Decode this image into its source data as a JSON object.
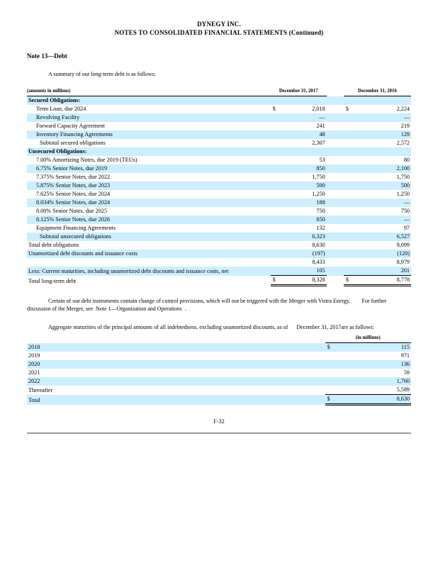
{
  "colors": {
    "row_highlight": "#CCEEFF",
    "rule": "#000000",
    "page_divider": "#9a9a9a"
  },
  "header": {
    "company": "DYNEGY INC.",
    "statement": "NOTES TO CONSOLIDATED FINANCIAL STATEMENTS (Continued)"
  },
  "note": {
    "heading": "Note 13—Debt",
    "intro": "A summary of our long-term debt is as follows:"
  },
  "debt_table": {
    "caption": "(amounts in millions)",
    "col_2017": "December 31, 2017",
    "col_2016": "December 31, 2016",
    "rows": [
      {
        "label": "Secured Obligations:",
        "bold": true,
        "blue": true,
        "indent": 0,
        "d1": "",
        "v1": "",
        "d2": "",
        "v2": ""
      },
      {
        "label": "Term Loan, due 2024",
        "blue": false,
        "indent": 1,
        "d1": "$",
        "v1": "2,018",
        "d2": "$",
        "v2": "2,224"
      },
      {
        "label": "Revolving Facility",
        "blue": true,
        "indent": 1,
        "d1": "",
        "v1": "—",
        "d2": "",
        "v2": "—"
      },
      {
        "label": "Forward Capacity Agreement",
        "blue": false,
        "indent": 1,
        "d1": "",
        "v1": "241",
        "d2": "",
        "v2": "219"
      },
      {
        "label": "Inventory Financing Agreements",
        "blue": true,
        "indent": 1,
        "d1": "",
        "v1": "48",
        "d2": "",
        "v2": "129"
      },
      {
        "label": "Subtotal secured obligations",
        "blue": false,
        "indent": 2,
        "d1": "",
        "v1": "2,307",
        "d2": "",
        "v2": "2,572"
      },
      {
        "label": "Unsecured Obligations:",
        "bold": true,
        "blue": true,
        "indent": 0,
        "d1": "",
        "v1": "",
        "d2": "",
        "v2": ""
      },
      {
        "label": "7.00% Amortizing Notes, due 2019 (TEUs)",
        "blue": false,
        "indent": 1,
        "d1": "",
        "v1": "53",
        "d2": "",
        "v2": "80"
      },
      {
        "label": "6.75% Senior Notes, due 2019",
        "blue": true,
        "indent": 1,
        "d1": "",
        "v1": "850",
        "d2": "",
        "v2": "2,100"
      },
      {
        "label": "7.375% Senior Notes, due 2022",
        "blue": false,
        "indent": 1,
        "d1": "",
        "v1": "1,750",
        "d2": "",
        "v2": "1,750"
      },
      {
        "label": "5.875% Senior Notes, due 2023",
        "blue": true,
        "indent": 1,
        "d1": "",
        "v1": "500",
        "d2": "",
        "v2": "500"
      },
      {
        "label": "7.625% Senior Notes, due 2024",
        "blue": false,
        "indent": 1,
        "d1": "",
        "v1": "1,250",
        "d2": "",
        "v2": "1,250"
      },
      {
        "label": "8.034% Senior Notes, due 2024",
        "blue": true,
        "indent": 1,
        "d1": "",
        "v1": "188",
        "d2": "",
        "v2": "—"
      },
      {
        "label": "8.00% Senior Notes, due 2025",
        "blue": false,
        "indent": 1,
        "d1": "",
        "v1": "750",
        "d2": "",
        "v2": "750"
      },
      {
        "label": "8.125% Senior Notes, due 2026",
        "blue": true,
        "indent": 1,
        "d1": "",
        "v1": "850",
        "d2": "",
        "v2": "—"
      },
      {
        "label": "Equipment Financing Agreements",
        "blue": false,
        "indent": 1,
        "d1": "",
        "v1": "132",
        "d2": "",
        "v2": "97"
      },
      {
        "label": "Subtotal unsecured obligations",
        "blue": true,
        "indent": 2,
        "d1": "",
        "v1": "6,323",
        "d2": "",
        "v2": "6,527"
      },
      {
        "label": "Total debt obligations",
        "blue": false,
        "indent": 0,
        "d1": "",
        "v1": "8,630",
        "d2": "",
        "v2": "9,099"
      },
      {
        "label": "Unamortized debt discounts and issuance costs",
        "blue": true,
        "indent": 0,
        "d1": "",
        "v1": "(197)",
        "d2": "",
        "v2": "(120)"
      },
      {
        "label": "",
        "blue": false,
        "indent": 0,
        "d1": "",
        "v1": "8,433",
        "d2": "",
        "v2": "8,979"
      },
      {
        "label": "Less: Current maturities, including unamortized debt discounts and issuance costs, net",
        "blue": true,
        "indent": 0,
        "d1": "",
        "v1": "105",
        "d2": "",
        "v2": "201",
        "rule": "single"
      },
      {
        "label": "Total long-term debt",
        "blue": false,
        "indent": 0,
        "d1": "$",
        "v1": "8,328",
        "d2": "$",
        "v2": "8,778",
        "rule": "double"
      }
    ]
  },
  "paragraphs": {
    "change_of_control": "Certain of our debt instruments contain change of control provisions, which will not be triggered with the Merger with Vistra Energy.        For further\ndiscussion of the Merger, see  Note 1—Organization and Operations  .",
    "aggregate_maturities": "Aggregate maturities of the principal amounts of all indebtedness, excluding unamortized discounts, as of      December 31, 2017are as follows:"
  },
  "maturities_table": {
    "units_header": "(in millions)",
    "rows": [
      {
        "label": "2018",
        "blue": true,
        "d": "$",
        "v": "115"
      },
      {
        "label": "2019",
        "blue": false,
        "d": "",
        "v": "971"
      },
      {
        "label": "2020",
        "blue": true,
        "d": "",
        "v": "136"
      },
      {
        "label": "2021",
        "blue": false,
        "d": "",
        "v": "59"
      },
      {
        "label": "2022",
        "blue": true,
        "d": "",
        "v": "1,760"
      },
      {
        "label": "Thereafter",
        "blue": false,
        "d": "",
        "v": "5,589",
        "rule": "single"
      },
      {
        "label": "Total",
        "blue": true,
        "d": "$",
        "v": "8,630",
        "rule": "double"
      }
    ]
  },
  "footer": {
    "page_number": "F-32"
  }
}
